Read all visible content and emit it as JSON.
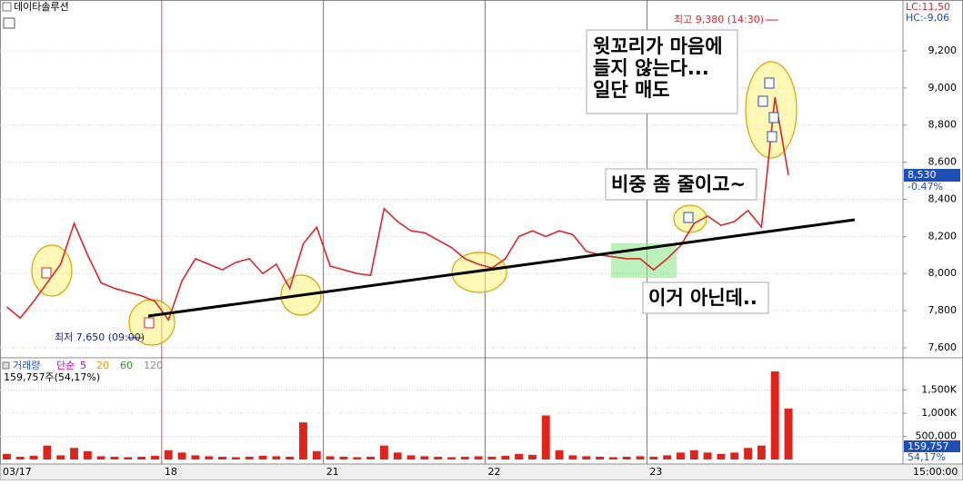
{
  "header": {
    "title": "데이타솔루션",
    "lc": "LC:11,50",
    "hc": "HC:-9,06"
  },
  "chart_data": [
    {
      "type": "line",
      "name": "price",
      "color": "#d8262c",
      "values": [
        7820,
        7760,
        7850,
        7950,
        8050,
        8270,
        8100,
        7950,
        7920,
        7900,
        7880,
        7850,
        7750,
        7960,
        8080,
        8050,
        8020,
        8060,
        8080,
        8000,
        8050,
        7920,
        8160,
        8250,
        8040,
        8020,
        8000,
        7990,
        8350,
        8280,
        8230,
        8220,
        8180,
        8140,
        8080,
        8050,
        8030,
        8080,
        8200,
        8230,
        8200,
        8230,
        8210,
        8120,
        8100,
        8090,
        8080,
        8080,
        8020,
        8080,
        8150,
        8270,
        8310,
        8260,
        8280,
        8340,
        8250,
        8950,
        8530,
        null,
        null,
        null,
        null,
        null,
        null,
        null,
        null
      ],
      "ylim": [
        7551,
        9474
      ],
      "yticks": [
        {
          "value": 7600,
          "label": "7,600"
        },
        {
          "value": 7800,
          "label": "7,800"
        },
        {
          "value": 8000,
          "label": "8,000"
        },
        {
          "value": 8200,
          "label": "8,200"
        },
        {
          "value": 8400,
          "label": "8,400"
        },
        {
          "value": 8600,
          "label": "8,600"
        },
        {
          "value": 8800,
          "label": "8,800"
        },
        {
          "value": 9000,
          "label": "9,000"
        },
        {
          "value": 9200,
          "label": "9,200"
        }
      ],
      "grid": true,
      "high_label": "최고 9,380 (14:30)",
      "low_label": "최저 7,650 (09:00)",
      "last_price_label": "8,530",
      "change_label": "-0.47%",
      "annotations": [
        [
          "윗꼬리가 마음에",
          "들지 않는다...",
          "일단 매도"
        ],
        [
          "비중 좀 줄이고~"
        ],
        [
          "이거 아닌데.."
        ]
      ]
    },
    {
      "type": "bar",
      "name": "volume",
      "title": "거래량",
      "color": "#e0241c",
      "ma_label": "단순",
      "ma": [
        {
          "name": "5",
          "color": "#c800c8"
        },
        {
          "name": "20",
          "color": "#d89a00"
        },
        {
          "name": "60",
          "color": "#1f9a1f"
        },
        {
          "name": "120",
          "color": "#8c8c8c"
        }
      ],
      "summary": "159,757주(54,17%)",
      "categories": [
        "03/17",
        null,
        null,
        null,
        null,
        null,
        null,
        null,
        null,
        null,
        null,
        null,
        "18",
        null,
        null,
        null,
        null,
        null,
        null,
        null,
        null,
        null,
        null,
        null,
        "21",
        null,
        null,
        null,
        null,
        null,
        null,
        null,
        null,
        null,
        null,
        null,
        "22",
        null,
        null,
        null,
        null,
        null,
        null,
        null,
        null,
        null,
        null,
        null,
        "23",
        null,
        null,
        null,
        null,
        null,
        null,
        null,
        null,
        null,
        null,
        null,
        null,
        null,
        null,
        null,
        null,
        null,
        null
      ],
      "values": [
        120000,
        60000,
        80000,
        300000,
        90000,
        250000,
        180000,
        70000,
        60000,
        50000,
        60000,
        80000,
        200000,
        150000,
        90000,
        70000,
        60000,
        50000,
        60000,
        80000,
        70000,
        60000,
        800000,
        180000,
        70000,
        60000,
        50000,
        60000,
        300000,
        150000,
        90000,
        70000,
        60000,
        50000,
        60000,
        70000,
        60000,
        80000,
        120000,
        100000,
        950000,
        200000,
        90000,
        70000,
        60000,
        50000,
        60000,
        70000,
        60000,
        90000,
        150000,
        200000,
        150000,
        120000,
        150000,
        250000,
        300000,
        1900000,
        1100000,
        null,
        null,
        null,
        null,
        null,
        null,
        null,
        null
      ],
      "ylim": [
        0,
        2156000
      ],
      "yticks": [
        {
          "value": 500000,
          "label": "500,000"
        },
        {
          "value": 1000000,
          "label": "1,000K"
        },
        {
          "value": 1500000,
          "label": "1,500K"
        }
      ],
      "last_volume_label": "159,757",
      "ratio_label": "54,17%",
      "time_label": "15:00:00"
    }
  ]
}
